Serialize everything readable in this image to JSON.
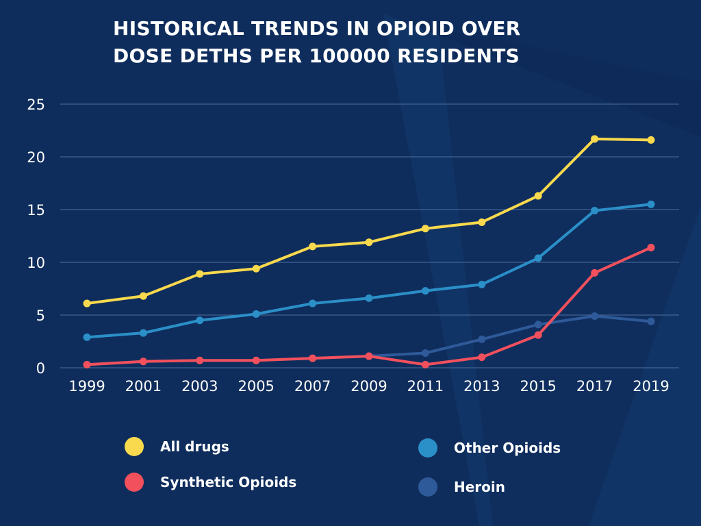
{
  "chart_data": {
    "type": "line",
    "title": [
      "HISTORICAL TRENDS IN OPIOID OVER",
      "DOSE DETHS PER 100000 RESIDENTS"
    ],
    "categories": [
      "1999",
      "2001",
      "2003",
      "2005",
      "2007",
      "2009",
      "2011",
      "2013",
      "2015",
      "2017",
      "2019"
    ],
    "ylim": [
      0,
      25
    ],
    "yticks": [
      "0",
      "5",
      "10",
      "15",
      "20",
      "25"
    ],
    "grid": true,
    "legend_position": "bottom",
    "series": [
      {
        "name": "All drugs",
        "color": "#f9d94d",
        "values": [
          6.1,
          6.8,
          8.9,
          9.4,
          11.5,
          11.9,
          13.2,
          13.8,
          16.3,
          21.7,
          21.6
        ]
      },
      {
        "name": "Other Opioids",
        "color": "#2b8fc8",
        "values": [
          2.9,
          3.3,
          4.5,
          5.1,
          6.1,
          6.6,
          7.3,
          7.9,
          10.4,
          14.9,
          15.5
        ]
      },
      {
        "name": "Synthetic Opioids",
        "color": "#f2505c",
        "values": [
          0.3,
          0.6,
          0.7,
          0.7,
          0.9,
          1.1,
          0.3,
          1.0,
          3.1,
          9.0,
          11.4
        ]
      },
      {
        "name": "Heroin",
        "color": "#2f5a99",
        "values": [
          0.3,
          0.6,
          0.7,
          0.7,
          0.9,
          1.1,
          1.4,
          2.7,
          4.1,
          4.9,
          4.4
        ]
      }
    ]
  }
}
